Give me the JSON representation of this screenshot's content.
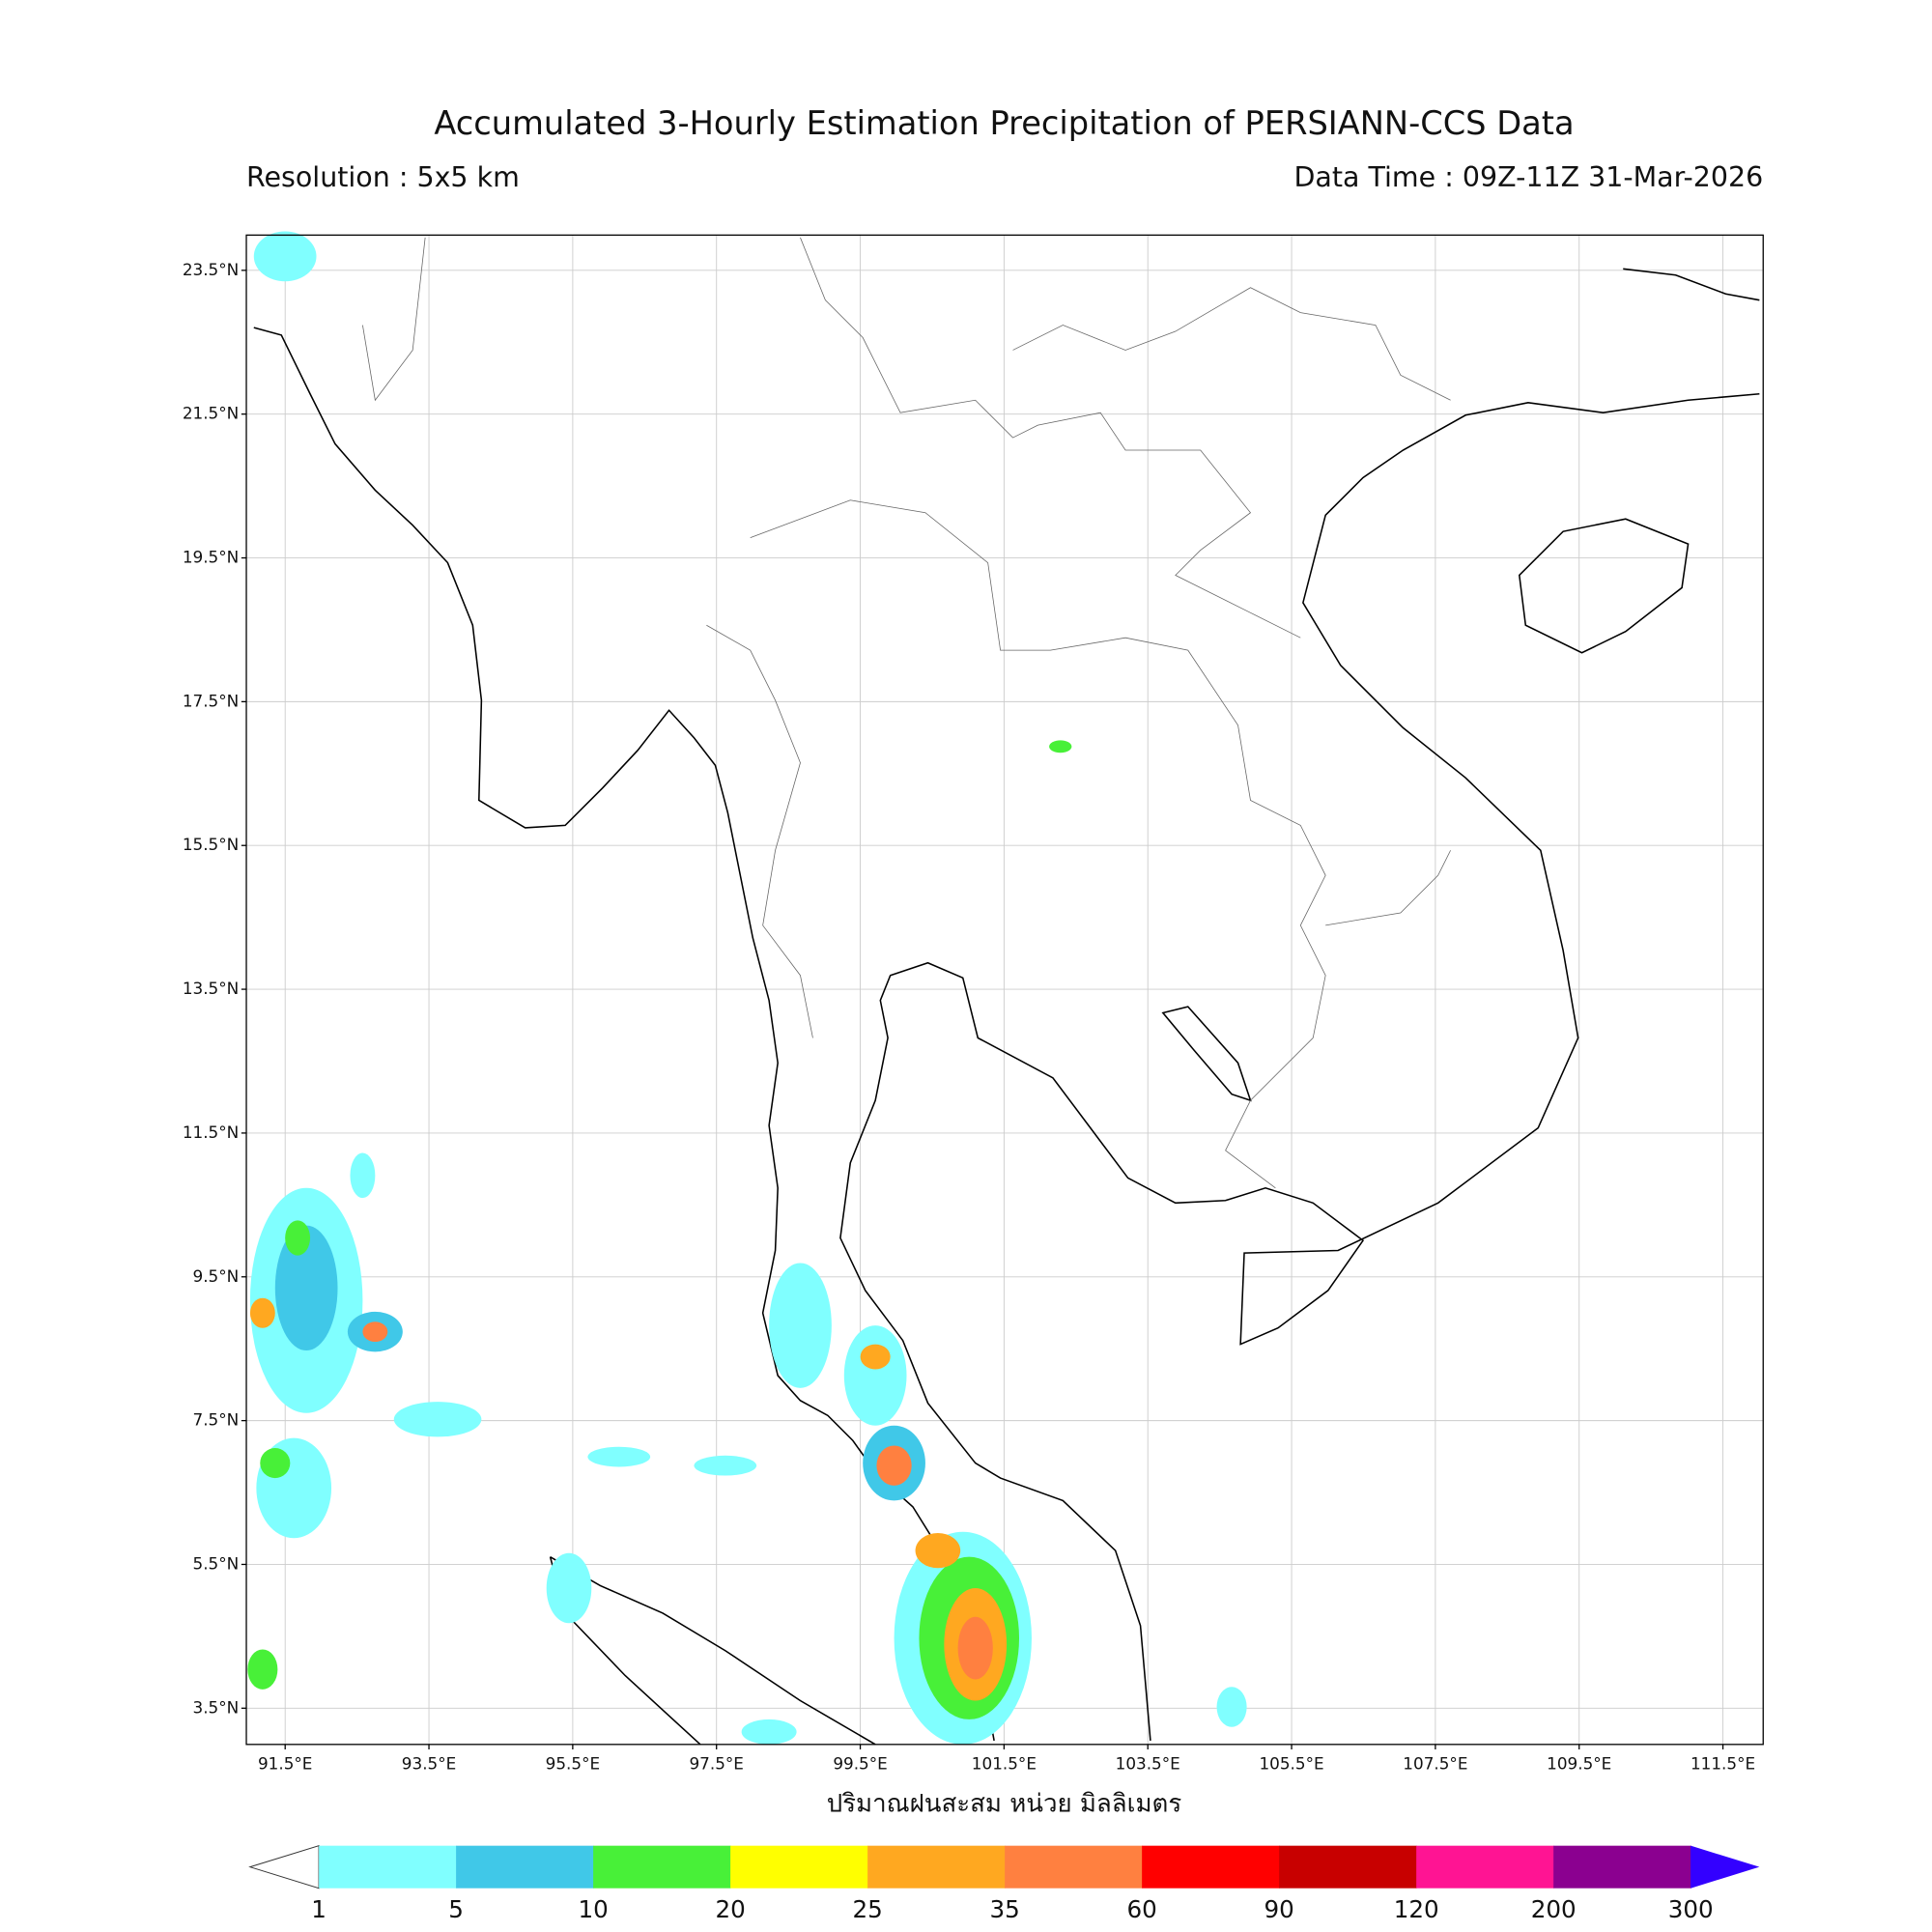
{
  "header": {
    "title": "Accumulated 3-Hourly Estimation Precipitation of PERSIANN-CCS Data",
    "resolution": "Resolution : 5x5 km",
    "data_time": "Data Time : 09Z-11Z 31-Mar-2026"
  },
  "map": {
    "xlim": [
      90.96,
      112.06
    ],
    "ylim": [
      2.996,
      23.99
    ],
    "xticks": [
      {
        "value": 91.5,
        "label": "91.5°E"
      },
      {
        "value": 93.5,
        "label": "93.5°E"
      },
      {
        "value": 95.5,
        "label": "95.5°E"
      },
      {
        "value": 97.5,
        "label": "97.5°E"
      },
      {
        "value": 99.5,
        "label": "99.5°E"
      },
      {
        "value": 101.5,
        "label": "101.5°E"
      },
      {
        "value": 103.5,
        "label": "103.5°E"
      },
      {
        "value": 105.5,
        "label": "105.5°E"
      },
      {
        "value": 107.5,
        "label": "107.5°E"
      },
      {
        "value": 109.5,
        "label": "109.5°E"
      },
      {
        "value": 111.5,
        "label": "111.5°E"
      }
    ],
    "yticks": [
      {
        "value": 23.5,
        "label": "23.5°N"
      },
      {
        "value": 21.5,
        "label": "21.5°N"
      },
      {
        "value": 19.5,
        "label": "19.5°N"
      },
      {
        "value": 17.5,
        "label": "17.5°N"
      },
      {
        "value": 15.5,
        "label": "15.5°N"
      },
      {
        "value": 13.5,
        "label": "13.5°N"
      },
      {
        "value": 11.5,
        "label": "11.5°N"
      },
      {
        "value": 9.5,
        "label": "9.5°N"
      },
      {
        "value": 7.5,
        "label": "7.5°N"
      },
      {
        "value": 5.5,
        "label": "5.5°N"
      },
      {
        "value": 3.5,
        "label": "3.5°N"
      }
    ],
    "xlabel": "ปริมาณฝนสะสม หน่วย มิลลิเมตร"
  },
  "colorbar": {
    "levels": [
      1,
      5,
      10,
      20,
      25,
      35,
      60,
      90,
      120,
      200,
      300
    ],
    "colors": [
      "#80ffff",
      "#40c8e8",
      "#48f038",
      "#ffff00",
      "#ffa820",
      "#ff8040",
      "#ff0000",
      "#c80000",
      "#ff1493",
      "#8b0090"
    ],
    "under_color": "#ffffff",
    "over_color": "#3300ff"
  }
}
